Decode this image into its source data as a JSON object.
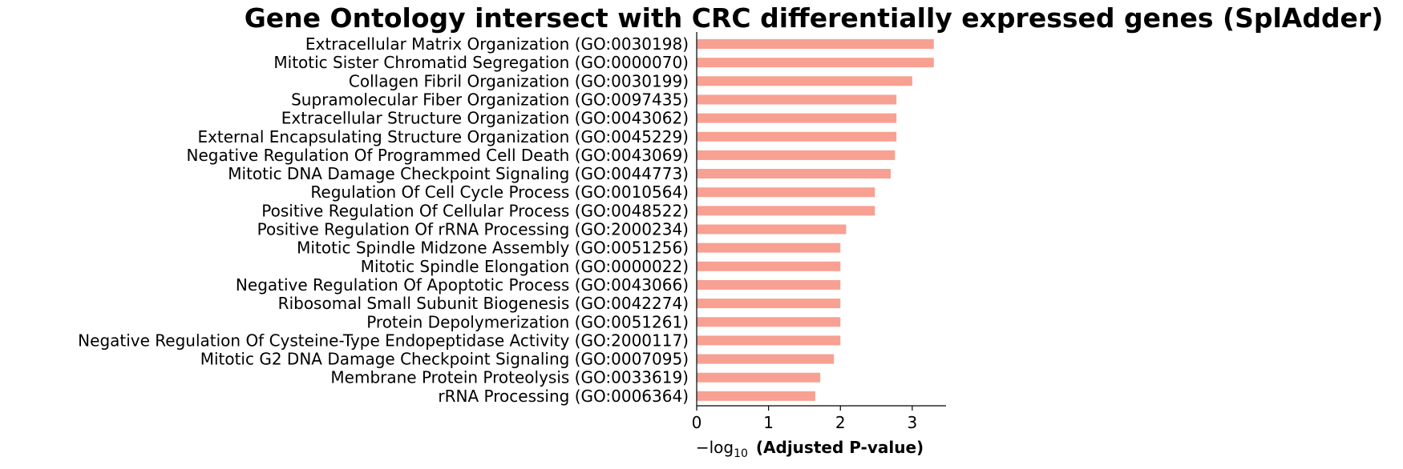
{
  "chart_data": {
    "type": "bar",
    "orientation": "horizontal",
    "title": "Gene Ontology intersect with CRC differentially expressed genes (SplAdder)",
    "xlabel": {
      "prefix": "−log",
      "subscript": "10",
      "bold_part": "(Adjusted P-value)"
    },
    "ylabel": "",
    "bar_color": "#f8a092",
    "categories": [
      "Extracellular Matrix Organization (GO:0030198)",
      "Mitotic Sister Chromatid Segregation (GO:0000070)",
      "Collagen Fibril Organization (GO:0030199)",
      "Supramolecular Fiber Organization (GO:0097435)",
      "Extracellular Structure Organization (GO:0043062)",
      "External Encapsulating Structure Organization (GO:0045229)",
      "Negative Regulation Of Programmed Cell Death (GO:0043069)",
      "Mitotic DNA Damage Checkpoint Signaling (GO:0044773)",
      "Regulation Of Cell Cycle Process (GO:0010564)",
      "Positive Regulation Of Cellular Process (GO:0048522)",
      "Positive Regulation Of rRNA Processing (GO:2000234)",
      "Mitotic Spindle Midzone Assembly (GO:0051256)",
      "Mitotic Spindle Elongation (GO:0000022)",
      "Negative Regulation Of Apoptotic Process (GO:0043066)",
      "Ribosomal Small Subunit Biogenesis (GO:0042274)",
      "Protein Depolymerization (GO:0051261)",
      "Negative Regulation Of Cysteine-Type Endopeptidase Activity (GO:2000117)",
      "Mitotic G2 DNA Damage Checkpoint Signaling (GO:0007095)",
      "Membrane Protein Proteolysis (GO:0033619)",
      "rRNA Processing (GO:0006364)"
    ],
    "values": [
      3.3,
      3.3,
      3.0,
      2.78,
      2.78,
      2.78,
      2.76,
      2.7,
      2.48,
      2.48,
      2.08,
      2.0,
      2.0,
      2.0,
      2.0,
      2.0,
      2.0,
      1.91,
      1.72,
      1.65
    ],
    "xlim": [
      0,
      3.47
    ],
    "xticks": [
      "0",
      "1",
      "2",
      "3"
    ],
    "grid": false
  }
}
